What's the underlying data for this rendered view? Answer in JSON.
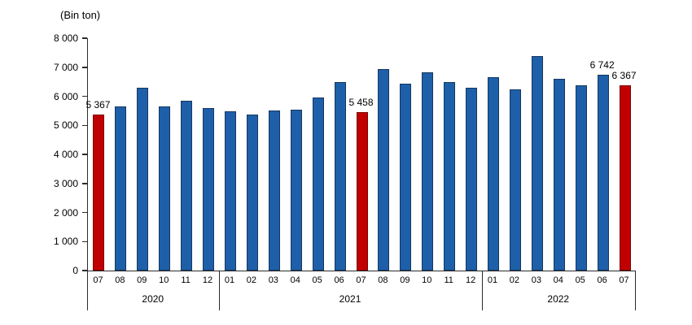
{
  "chart_data": {
    "type": "bar",
    "title": "(Bin ton)",
    "xlabel": "",
    "ylabel": "(Bin ton)",
    "ylim": [
      0,
      8000
    ],
    "ytick_interval": 1000,
    "ytick_labels": [
      "0",
      "1 000",
      "2 000",
      "3 000",
      "4 000",
      "5 000",
      "6 000",
      "7 000",
      "8 000"
    ],
    "grid": "off",
    "legend": "none",
    "colors": {
      "bar_fill": "#1E5FA9",
      "bar_border": "#16375F",
      "highlight_fill": "#C00000",
      "highlight_border": "#7F0000",
      "axis": "#2b2b2b",
      "text": "#000000"
    },
    "groups": [
      {
        "year": "2020",
        "points": [
          {
            "month": "07",
            "value": 5367,
            "highlight": true,
            "label": "5 367"
          },
          {
            "month": "08",
            "value": 5640,
            "highlight": false
          },
          {
            "month": "09",
            "value": 6300,
            "highlight": false
          },
          {
            "month": "10",
            "value": 5650,
            "highlight": false
          },
          {
            "month": "11",
            "value": 5860,
            "highlight": false
          },
          {
            "month": "12",
            "value": 5600,
            "highlight": false
          }
        ]
      },
      {
        "year": "2021",
        "points": [
          {
            "month": "01",
            "value": 5470,
            "highlight": false
          },
          {
            "month": "02",
            "value": 5360,
            "highlight": false
          },
          {
            "month": "03",
            "value": 5510,
            "highlight": false
          },
          {
            "month": "04",
            "value": 5550,
            "highlight": false
          },
          {
            "month": "05",
            "value": 5950,
            "highlight": false
          },
          {
            "month": "06",
            "value": 6500,
            "highlight": false
          },
          {
            "month": "07",
            "value": 5458,
            "highlight": true,
            "label": "5 458"
          },
          {
            "month": "08",
            "value": 6940,
            "highlight": false
          },
          {
            "month": "09",
            "value": 6430,
            "highlight": false
          },
          {
            "month": "10",
            "value": 6830,
            "highlight": false
          },
          {
            "month": "11",
            "value": 6480,
            "highlight": false
          },
          {
            "month": "12",
            "value": 6300,
            "highlight": false
          }
        ]
      },
      {
        "year": "2022",
        "points": [
          {
            "month": "01",
            "value": 6670,
            "highlight": false
          },
          {
            "month": "02",
            "value": 6230,
            "highlight": false
          },
          {
            "month": "03",
            "value": 7390,
            "highlight": false
          },
          {
            "month": "04",
            "value": 6590,
            "highlight": false
          },
          {
            "month": "05",
            "value": 6380,
            "highlight": false
          },
          {
            "month": "06",
            "value": 6742,
            "highlight": false,
            "label": "6 742"
          },
          {
            "month": "07",
            "value": 6367,
            "highlight": true,
            "label": "6 367"
          }
        ]
      }
    ]
  }
}
